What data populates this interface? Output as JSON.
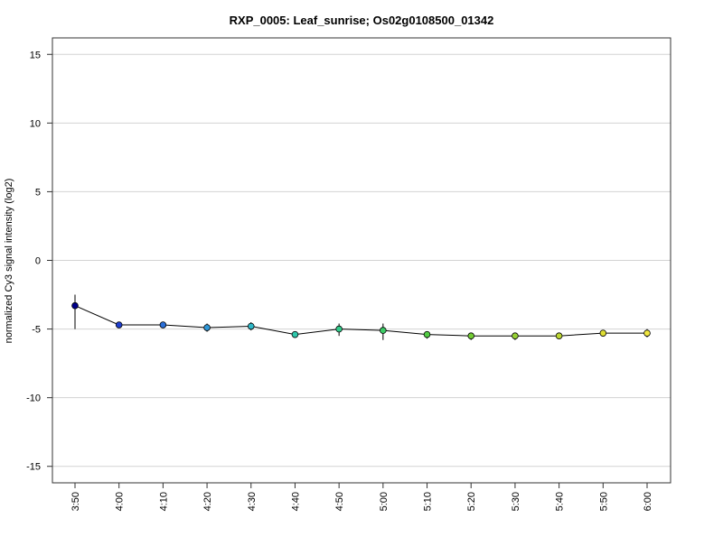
{
  "chart_data": {
    "type": "line",
    "title": "RXP_0005: Leaf_sunrise; Os02g0108500_01342",
    "ylabel": "normalized Cy3 signal intensity (log2)",
    "xlabel": "",
    "ylim": [
      -16.2,
      16.2
    ],
    "yticks": [
      -15,
      -10,
      -5,
      0,
      5,
      10,
      15
    ],
    "ytick_labels": [
      "-15",
      "-10",
      "-5",
      "0",
      "5",
      "10",
      "15"
    ],
    "grid": true,
    "categories": [
      "3:50",
      "4:00",
      "4:10",
      "4:20",
      "4:30",
      "4:40",
      "4:50",
      "5:00",
      "5:10",
      "5:20",
      "5:30",
      "5:40",
      "5:50",
      "6:00"
    ],
    "values": [
      -3.3,
      -4.7,
      -4.7,
      -4.9,
      -4.8,
      -5.4,
      -5.0,
      -5.1,
      -5.4,
      -5.5,
      -5.5,
      -5.5,
      -5.3,
      -5.3
    ],
    "error_low": [
      -5.0,
      -4.9,
      -4.8,
      -5.2,
      -5.1,
      -5.5,
      -5.5,
      -5.8,
      -5.7,
      -5.8,
      -5.8,
      -5.7,
      -5.5,
      -5.6
    ],
    "error_high": [
      -2.5,
      -4.5,
      -4.6,
      -4.6,
      -4.5,
      -5.2,
      -4.6,
      -4.6,
      -5.2,
      -5.3,
      -5.3,
      -5.4,
      -5.1,
      -5.0
    ],
    "point_colors": [
      "#00008b",
      "#1f3fd0",
      "#2a6fd8",
      "#2f97d8",
      "#2fb8c8",
      "#2fc8ac",
      "#33cc8c",
      "#3dcc66",
      "#52cc44",
      "#72cc33",
      "#96d033",
      "#bcd633",
      "#dede33",
      "#f0e640"
    ],
    "line_color": "#000000",
    "grid_color": "#d3d3d3"
  }
}
